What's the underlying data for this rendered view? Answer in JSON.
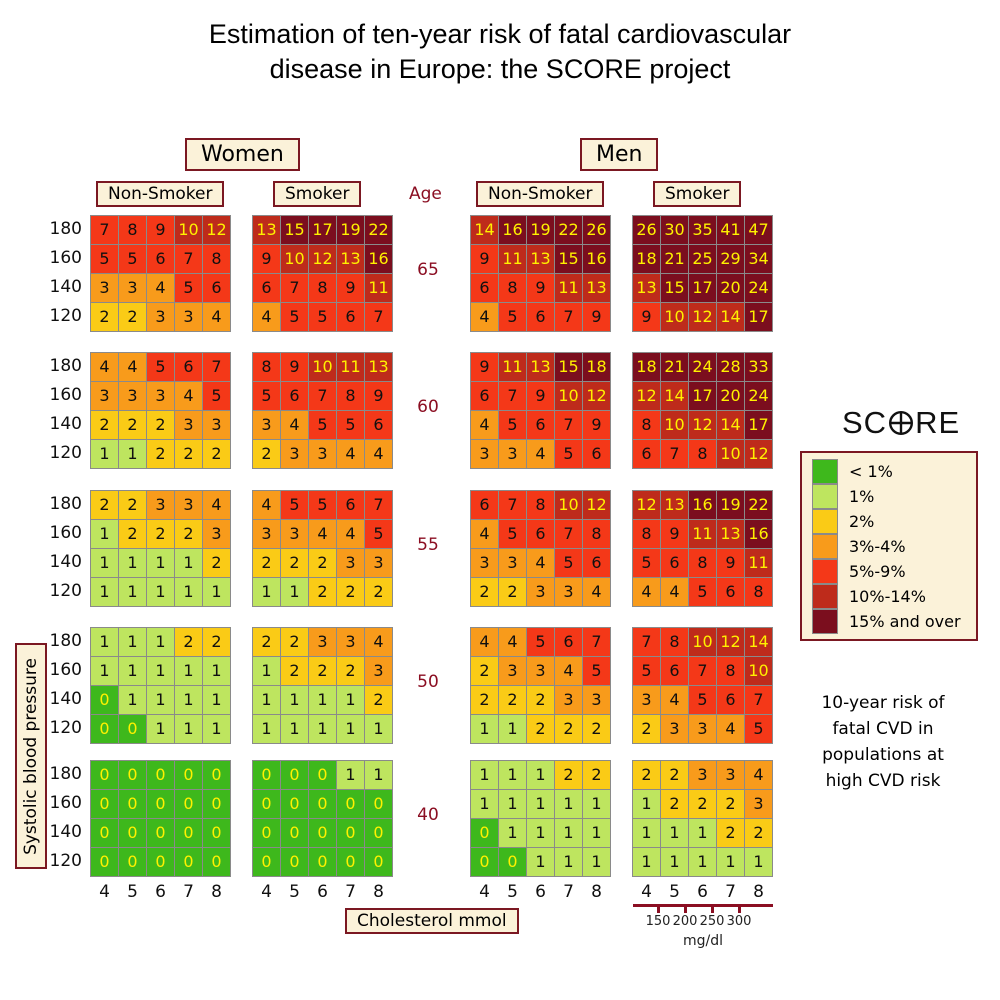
{
  "title": [
    "Estimation of ten-year risk of fatal cardiovascular",
    "disease in Europe: the SCORE project"
  ],
  "group_headers": {
    "women": "Women",
    "men": "Men"
  },
  "sub_headers": {
    "nonsmoker": "Non-Smoker",
    "smoker": "Smoker",
    "age": "Age"
  },
  "bp_axis": {
    "label": "Systolic blood pressure",
    "values": [
      "180",
      "160",
      "140",
      "120"
    ]
  },
  "chol_axis": {
    "label": "Cholesterol mmol",
    "values": [
      "4",
      "5",
      "6",
      "7",
      "8"
    ]
  },
  "mgdl_axis": {
    "label": "mg/dl",
    "ticks": [
      "150",
      "200",
      "250",
      "300"
    ]
  },
  "note_lines": [
    "10-year risk of",
    "fatal CVD in",
    "populations at",
    "high CVD risk"
  ],
  "legend": {
    "logo_prefix": "SC",
    "logo_suffix": "RE",
    "items": [
      {
        "label": "< 1%",
        "color": "#3EB81C"
      },
      {
        "label": "1%",
        "color": "#BEE55F"
      },
      {
        "label": "2%",
        "color": "#FACB16"
      },
      {
        "label": "3%-4%",
        "color": "#F89B1B"
      },
      {
        "label": "5%-9%",
        "color": "#F43818"
      },
      {
        "label": "10%-14%",
        "color": "#BE2B1B"
      },
      {
        "label": "15% and over",
        "color": "#7B0E1E"
      }
    ]
  },
  "colors": {
    "yellow_text": "#FFF100",
    "black_text": "#000000",
    "grid_line": "#8a8a8a",
    "cream": "#FBF2D9",
    "maroon": "#7B1822",
    "dark_red_text": "#8B0E22"
  },
  "chart_data": {
    "type": "heatmap",
    "title": "Estimation of ten-year risk of fatal cardiovascular disease in Europe: the SCORE project",
    "xlabel": "Cholesterol mmol",
    "ylabel": "Systolic blood pressure",
    "x_values": [
      4,
      5,
      6,
      7,
      8
    ],
    "y_values": [
      180,
      160,
      140,
      120
    ],
    "secondary_x_axis": {
      "label": "mg/dl",
      "ticks": [
        150,
        200,
        250,
        300
      ]
    },
    "risk_bands": [
      "< 1%",
      "1%",
      "2%",
      "3%-4%",
      "5%-9%",
      "10%-14%",
      "15% and over"
    ],
    "age_groups": [
      {
        "age": 65,
        "grids": {
          "women_nonsmoker": [
            [
              7,
              8,
              9,
              10,
              12
            ],
            [
              5,
              5,
              6,
              7,
              8
            ],
            [
              3,
              3,
              4,
              5,
              6
            ],
            [
              2,
              2,
              3,
              3,
              4
            ]
          ],
          "women_smoker": [
            [
              13,
              15,
              17,
              19,
              22
            ],
            [
              9,
              10,
              12,
              13,
              16
            ],
            [
              6,
              7,
              8,
              9,
              11
            ],
            [
              4,
              5,
              5,
              6,
              7
            ]
          ],
          "men_nonsmoker": [
            [
              14,
              16,
              19,
              22,
              26
            ],
            [
              9,
              11,
              13,
              15,
              16
            ],
            [
              6,
              8,
              9,
              11,
              13
            ],
            [
              4,
              5,
              6,
              7,
              9
            ]
          ],
          "men_smoker": [
            [
              26,
              30,
              35,
              41,
              47
            ],
            [
              18,
              21,
              25,
              29,
              34
            ],
            [
              13,
              15,
              17,
              20,
              24
            ],
            [
              9,
              10,
              12,
              14,
              17
            ]
          ]
        }
      },
      {
        "age": 60,
        "grids": {
          "women_nonsmoker": [
            [
              4,
              4,
              5,
              6,
              7
            ],
            [
              3,
              3,
              3,
              4,
              5
            ],
            [
              2,
              2,
              2,
              3,
              3
            ],
            [
              1,
              1,
              2,
              2,
              2
            ]
          ],
          "women_smoker": [
            [
              8,
              9,
              10,
              11,
              13
            ],
            [
              5,
              6,
              7,
              8,
              9
            ],
            [
              3,
              4,
              5,
              5,
              6
            ],
            [
              2,
              3,
              3,
              4,
              4
            ]
          ],
          "men_nonsmoker": [
            [
              9,
              11,
              13,
              15,
              18
            ],
            [
              6,
              7,
              9,
              10,
              12
            ],
            [
              4,
              5,
              6,
              7,
              9
            ],
            [
              3,
              3,
              4,
              5,
              6
            ]
          ],
          "men_smoker": [
            [
              18,
              21,
              24,
              28,
              33
            ],
            [
              12,
              14,
              17,
              20,
              24
            ],
            [
              8,
              10,
              12,
              14,
              17
            ],
            [
              6,
              7,
              8,
              10,
              12
            ]
          ]
        }
      },
      {
        "age": 55,
        "grids": {
          "women_nonsmoker": [
            [
              2,
              2,
              3,
              3,
              4
            ],
            [
              1,
              2,
              2,
              2,
              3
            ],
            [
              1,
              1,
              1,
              1,
              2
            ],
            [
              1,
              1,
              1,
              1,
              1
            ]
          ],
          "women_smoker": [
            [
              4,
              5,
              5,
              6,
              7
            ],
            [
              3,
              3,
              4,
              4,
              5
            ],
            [
              2,
              2,
              2,
              3,
              3
            ],
            [
              1,
              1,
              2,
              2,
              2
            ]
          ],
          "men_nonsmoker": [
            [
              6,
              7,
              8,
              10,
              12
            ],
            [
              4,
              5,
              6,
              7,
              8
            ],
            [
              3,
              3,
              4,
              5,
              6
            ],
            [
              2,
              2,
              3,
              3,
              4
            ]
          ],
          "men_smoker": [
            [
              12,
              13,
              16,
              19,
              22
            ],
            [
              8,
              9,
              11,
              13,
              16
            ],
            [
              5,
              6,
              8,
              9,
              11
            ],
            [
              4,
              4,
              5,
              6,
              8
            ]
          ]
        }
      },
      {
        "age": 50,
        "grids": {
          "women_nonsmoker": [
            [
              1,
              1,
              1,
              2,
              2
            ],
            [
              1,
              1,
              1,
              1,
              1
            ],
            [
              0,
              1,
              1,
              1,
              1
            ],
            [
              0,
              0,
              1,
              1,
              1
            ]
          ],
          "women_smoker": [
            [
              2,
              2,
              3,
              3,
              4
            ],
            [
              1,
              2,
              2,
              2,
              3
            ],
            [
              1,
              1,
              1,
              1,
              2
            ],
            [
              1,
              1,
              1,
              1,
              1
            ]
          ],
          "men_nonsmoker": [
            [
              4,
              4,
              5,
              6,
              7
            ],
            [
              2,
              3,
              3,
              4,
              5
            ],
            [
              2,
              2,
              2,
              3,
              3
            ],
            [
              1,
              1,
              2,
              2,
              2
            ]
          ],
          "men_smoker": [
            [
              7,
              8,
              10,
              12,
              14
            ],
            [
              5,
              6,
              7,
              8,
              10
            ],
            [
              3,
              4,
              5,
              6,
              7
            ],
            [
              2,
              3,
              3,
              4,
              5
            ]
          ]
        }
      },
      {
        "age": 40,
        "grids": {
          "women_nonsmoker": [
            [
              0,
              0,
              0,
              0,
              0
            ],
            [
              0,
              0,
              0,
              0,
              0
            ],
            [
              0,
              0,
              0,
              0,
              0
            ],
            [
              0,
              0,
              0,
              0,
              0
            ]
          ],
          "women_smoker": [
            [
              0,
              0,
              0,
              1,
              1
            ],
            [
              0,
              0,
              0,
              0,
              0
            ],
            [
              0,
              0,
              0,
              0,
              0
            ],
            [
              0,
              0,
              0,
              0,
              0
            ]
          ],
          "men_nonsmoker": [
            [
              1,
              1,
              1,
              2,
              2
            ],
            [
              1,
              1,
              1,
              1,
              1
            ],
            [
              0,
              1,
              1,
              1,
              1
            ],
            [
              0,
              0,
              1,
              1,
              1
            ]
          ],
          "men_smoker": [
            [
              2,
              2,
              3,
              3,
              4
            ],
            [
              1,
              2,
              2,
              2,
              3
            ],
            [
              1,
              1,
              1,
              2,
              2
            ],
            [
              1,
              1,
              1,
              1,
              1
            ]
          ]
        }
      }
    ]
  }
}
